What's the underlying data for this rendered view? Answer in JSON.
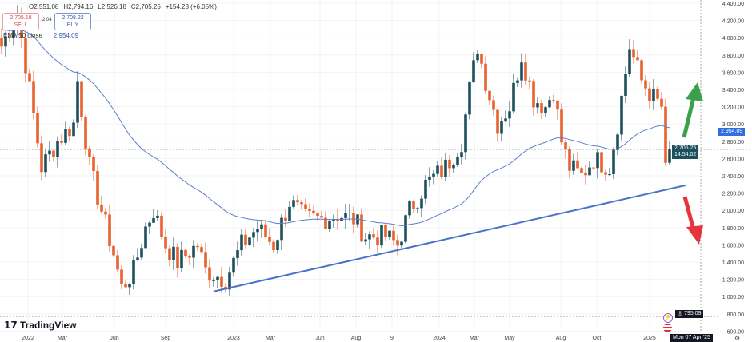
{
  "legend": {
    "open": "O2,551.08",
    "high": "H2,794.16",
    "low": "L2,526.18",
    "close": "C2,705.25",
    "change": "+154.28 (+6.05%)"
  },
  "trade": {
    "sell_price": "2,705.18",
    "sell_label": "SELL",
    "spread": "2.04",
    "buy_price": "2,708.22",
    "buy_label": "BUY"
  },
  "ema": {
    "label": "EMA 50 close",
    "value": "2,954.09"
  },
  "price_tag": {
    "price": "2,705.25",
    "countdown": "14:54:02"
  },
  "low_tag": "795.09",
  "crosshair_date": "Mon 07 Apr '25",
  "brand": "TradingView",
  "colors": {
    "up": "#1d4f5c",
    "down": "#e8622e",
    "ema": "#5b7fc9",
    "trend": "#4a72c9",
    "arrow_up": "#3aa04a",
    "arrow_down": "#e5343c"
  },
  "chart_data": {
    "type": "candlestick",
    "interval": "weekly",
    "ylim": [
      600,
      4400
    ],
    "y_ticks": [
      "4,400.00",
      "4,200.00",
      "4,000.00",
      "3,800.00",
      "3,600.00",
      "3,400.00",
      "3,200.00",
      "3,000.00",
      "2,800.00",
      "2,600.00",
      "2,400.00",
      "2,200.00",
      "2,000.00",
      "1,800.00",
      "1,600.00",
      "1,400.00",
      "1,200.00",
      "1,000.00",
      "800.00",
      "600.00"
    ],
    "x_ticks": [
      "2022",
      "Mar",
      "Jun",
      "Sep",
      "2023",
      "Mar",
      "Jun",
      "Aug",
      "9",
      "2024",
      "Mar",
      "May",
      "Aug",
      "Oct",
      "2025"
    ],
    "close_path_week_price": [
      [
        0,
        3900
      ],
      [
        4,
        4300
      ],
      [
        7,
        3400
      ],
      [
        10,
        2500
      ],
      [
        14,
        2800
      ],
      [
        18,
        3000
      ],
      [
        19,
        3500
      ],
      [
        22,
        2500
      ],
      [
        25,
        2000
      ],
      [
        28,
        1500
      ],
      [
        30,
        1100
      ],
      [
        33,
        1300
      ],
      [
        36,
        1800
      ],
      [
        38,
        2000
      ],
      [
        41,
        1600
      ],
      [
        44,
        1400
      ],
      [
        49,
        1600
      ],
      [
        51,
        1300
      ],
      [
        56,
        1200
      ],
      [
        60,
        1600
      ],
      [
        64,
        1800
      ],
      [
        68,
        1600
      ],
      [
        72,
        2100
      ],
      [
        76,
        1900
      ],
      [
        80,
        1900
      ],
      [
        84,
        1950
      ],
      [
        88,
        1900
      ],
      [
        91,
        1700
      ],
      [
        96,
        1700
      ],
      [
        99,
        1600
      ],
      [
        102,
        2000
      ],
      [
        106,
        2300
      ],
      [
        111,
        2500
      ],
      [
        115,
        2800
      ],
      [
        117,
        3400
      ],
      [
        119,
        3900
      ],
      [
        121,
        3500
      ],
      [
        124,
        3000
      ],
      [
        127,
        3200
      ],
      [
        130,
        3800
      ],
      [
        133,
        3300
      ],
      [
        136,
        3200
      ],
      [
        138,
        3400
      ],
      [
        140,
        2800
      ],
      [
        142,
        2500
      ],
      [
        145,
        2400
      ],
      [
        148,
        2600
      ],
      [
        152,
        2500
      ],
      [
        154,
        3000
      ],
      [
        157,
        3900
      ],
      [
        160,
        3500
      ],
      [
        163,
        3300
      ],
      [
        165,
        3200
      ],
      [
        166,
        2551
      ],
      [
        167,
        2705
      ]
    ],
    "last": {
      "open": 2551.08,
      "high": 2794.16,
      "low": 2526.18,
      "close": 2705.25
    },
    "ema_period": 50,
    "trendline": {
      "from": [
        53,
        1060
      ],
      "to": [
        171,
        2290
      ]
    },
    "annotations": [
      "green up arrow",
      "red down arrow"
    ]
  }
}
